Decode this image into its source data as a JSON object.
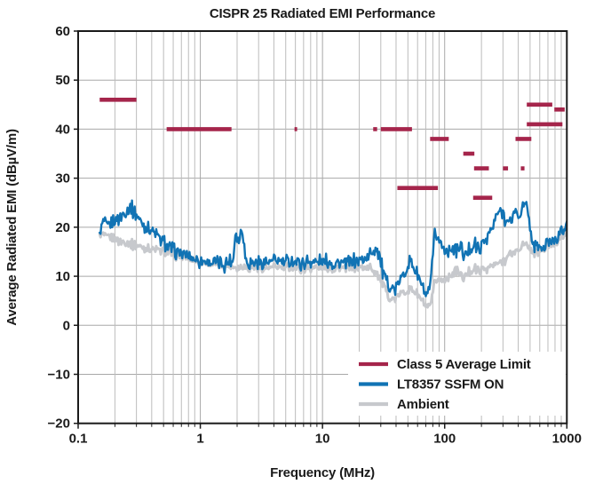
{
  "chart_data": {
    "type": "line",
    "title": "CISPR 25 Radiated EMI Performance",
    "xlabel": "Frequency (MHz)",
    "ylabel": "Average Radiated EMI (dBµV/m)",
    "x_scale": "log",
    "xlim": [
      0.1,
      1000
    ],
    "ylim": [
      -20,
      60
    ],
    "x_ticks": [
      0.1,
      1,
      10,
      100,
      1000
    ],
    "x_tick_labels": [
      "0.1",
      "1",
      "10",
      "100",
      "1000"
    ],
    "y_ticks": [
      60,
      50,
      40,
      30,
      20,
      10,
      0,
      -10,
      -20
    ],
    "y_tick_labels": [
      "60",
      "50",
      "40",
      "30",
      "20",
      "10",
      "0",
      "−10",
      "−20"
    ],
    "grid": true,
    "legend_position": "lower right",
    "colors": {
      "background": "#ffffff",
      "axis_frame": "#1a1a1a",
      "grid_minor": "#bcbcbc",
      "grid_major": "#a8a8a8",
      "text": "#1a1a1a"
    },
    "series": [
      {
        "name": "Class 5 Average Limit",
        "style": "segments",
        "color": "#A5254B",
        "segments_format": "[f_start_MHz, f_stop_MHz, limit_dBuV_per_m]",
        "segments": [
          [
            0.15,
            0.3,
            46
          ],
          [
            0.53,
            1.8,
            40
          ],
          [
            5.9,
            6.2,
            40
          ],
          [
            26,
            28,
            40
          ],
          [
            30,
            54,
            40
          ],
          [
            41,
            88,
            28
          ],
          [
            76,
            108,
            38
          ],
          [
            142,
            175,
            35
          ],
          [
            174,
            230,
            32
          ],
          [
            171,
            245,
            26
          ],
          [
            300,
            330,
            32
          ],
          [
            420,
            450,
            32
          ],
          [
            380,
            512,
            38
          ],
          [
            470,
            760,
            45
          ],
          [
            470,
            920,
            41
          ],
          [
            790,
            960,
            44
          ]
        ]
      },
      {
        "name": "LT8357 SSFM ON",
        "style": "noisy-line",
        "color": "#1173B4",
        "noise_db": 1.25,
        "points": [
          [
            0.15,
            18.5
          ],
          [
            0.155,
            20
          ],
          [
            0.165,
            21.3
          ],
          [
            0.175,
            20.2
          ],
          [
            0.19,
            21
          ],
          [
            0.21,
            21.8
          ],
          [
            0.24,
            22.9
          ],
          [
            0.27,
            24.2
          ],
          [
            0.3,
            22.5
          ],
          [
            0.33,
            21
          ],
          [
            0.36,
            20
          ],
          [
            0.4,
            19.4
          ],
          [
            0.45,
            18
          ],
          [
            0.53,
            16.2
          ],
          [
            0.62,
            15.2
          ],
          [
            0.7,
            14.6
          ],
          [
            0.8,
            13.9
          ],
          [
            0.92,
            13.4
          ],
          [
            1.1,
            13
          ],
          [
            1.3,
            12.8
          ],
          [
            1.6,
            12.6
          ],
          [
            1.85,
            13
          ],
          [
            1.95,
            19.5
          ],
          [
            2.05,
            17.2
          ],
          [
            2.2,
            19.8
          ],
          [
            2.35,
            13.2
          ],
          [
            2.6,
            12.8
          ],
          [
            3,
            13
          ],
          [
            3.5,
            12.8
          ],
          [
            4,
            13.1
          ],
          [
            5,
            12.9
          ],
          [
            6,
            13
          ],
          [
            7,
            12.8
          ],
          [
            8,
            13
          ],
          [
            9,
            12.7
          ],
          [
            10,
            12.8
          ],
          [
            12,
            12.9
          ],
          [
            14,
            12.6
          ],
          [
            17,
            12.8
          ],
          [
            20,
            13.2
          ],
          [
            24,
            13.8
          ],
          [
            27,
            15.9
          ],
          [
            29,
            15
          ],
          [
            31,
            11
          ],
          [
            33,
            9.3
          ],
          [
            36,
            7.8
          ],
          [
            39,
            7.2
          ],
          [
            43,
            9
          ],
          [
            47,
            10.8
          ],
          [
            52,
            13.3
          ],
          [
            57,
            11.5
          ],
          [
            62,
            9.5
          ],
          [
            67,
            7
          ],
          [
            71,
            5.8
          ],
          [
            75,
            7
          ],
          [
            79,
            12
          ],
          [
            83,
            18.3
          ],
          [
            88,
            18
          ],
          [
            95,
            16
          ],
          [
            105,
            15.2
          ],
          [
            115,
            16
          ],
          [
            125,
            15
          ],
          [
            137,
            16.4
          ],
          [
            145,
            14
          ],
          [
            160,
            15.5
          ],
          [
            175,
            16.5
          ],
          [
            190,
            15.3
          ],
          [
            205,
            16.5
          ],
          [
            225,
            18.5
          ],
          [
            245,
            19.5
          ],
          [
            265,
            22.5
          ],
          [
            285,
            23.5
          ],
          [
            300,
            23
          ],
          [
            320,
            21.5
          ],
          [
            340,
            20.3
          ],
          [
            360,
            22
          ],
          [
            375,
            23.8
          ],
          [
            395,
            22.5
          ],
          [
            420,
            23
          ],
          [
            455,
            24.5
          ],
          [
            480,
            23.5
          ],
          [
            505,
            19
          ],
          [
            530,
            16.5
          ],
          [
            560,
            15.5
          ],
          [
            590,
            16.5
          ],
          [
            620,
            15.3
          ],
          [
            650,
            16
          ],
          [
            700,
            16.5
          ],
          [
            750,
            17.3
          ],
          [
            800,
            18
          ],
          [
            850,
            18.3
          ],
          [
            900,
            19
          ],
          [
            950,
            19.5
          ],
          [
            1000,
            20.5
          ]
        ]
      },
      {
        "name": "Ambient",
        "style": "noisy-line",
        "color": "#C7C9CD",
        "noise_db": 0.8,
        "points": [
          [
            0.15,
            18.4
          ],
          [
            0.17,
            18.2
          ],
          [
            0.2,
            17.6
          ],
          [
            0.23,
            17.1
          ],
          [
            0.27,
            16.6
          ],
          [
            0.32,
            16.1
          ],
          [
            0.38,
            15.6
          ],
          [
            0.45,
            15.3
          ],
          [
            0.53,
            15
          ],
          [
            0.63,
            14.3
          ],
          [
            0.73,
            13.8
          ],
          [
            0.85,
            13.3
          ],
          [
            1,
            12.9
          ],
          [
            1.2,
            12.5
          ],
          [
            1.45,
            12.3
          ],
          [
            1.7,
            12.1
          ],
          [
            2,
            11.9
          ],
          [
            2.4,
            11.8
          ],
          [
            2.9,
            11.9
          ],
          [
            3.5,
            11.7
          ],
          [
            4.2,
            11.8
          ],
          [
            5,
            11.7
          ],
          [
            6,
            11.8
          ],
          [
            7.2,
            11.6
          ],
          [
            8.6,
            11.7
          ],
          [
            10,
            11.6
          ],
          [
            12,
            11.7
          ],
          [
            15,
            11.6
          ],
          [
            18,
            11.7
          ],
          [
            21,
            11.8
          ],
          [
            25,
            11.5
          ],
          [
            28,
            10.8
          ],
          [
            31,
            8.8
          ],
          [
            34,
            6.2
          ],
          [
            37,
            5.2
          ],
          [
            40,
            5.6
          ],
          [
            44,
            6.5
          ],
          [
            48,
            7
          ],
          [
            53,
            7.4
          ],
          [
            58,
            6.8
          ],
          [
            63,
            5.5
          ],
          [
            68,
            4.2
          ],
          [
            73,
            3.4
          ],
          [
            78,
            4.6
          ],
          [
            82,
            8
          ],
          [
            87,
            9.5
          ],
          [
            95,
            9
          ],
          [
            105,
            9.8
          ],
          [
            115,
            10.5
          ],
          [
            125,
            11.2
          ],
          [
            137,
            10.2
          ],
          [
            145,
            9.8
          ],
          [
            160,
            11
          ],
          [
            175,
            11.5
          ],
          [
            190,
            11
          ],
          [
            210,
            11.5
          ],
          [
            230,
            11.8
          ],
          [
            255,
            12.3
          ],
          [
            280,
            12.8
          ],
          [
            310,
            13.5
          ],
          [
            340,
            14.2
          ],
          [
            375,
            15
          ],
          [
            410,
            15.8
          ],
          [
            450,
            16.3
          ],
          [
            490,
            16
          ],
          [
            530,
            14.8
          ],
          [
            560,
            14.5
          ],
          [
            600,
            15
          ],
          [
            650,
            15.5
          ],
          [
            700,
            16
          ],
          [
            750,
            16.5
          ],
          [
            800,
            17
          ],
          [
            860,
            17.5
          ],
          [
            920,
            18
          ],
          [
            1000,
            19
          ]
        ]
      }
    ],
    "legend": [
      {
        "label": "Class 5 Average Limit",
        "color": "#A5254B"
      },
      {
        "label": "LT8357 SSFM ON",
        "color": "#1173B4"
      },
      {
        "label": "Ambient",
        "color": "#C7C9CD"
      }
    ]
  }
}
